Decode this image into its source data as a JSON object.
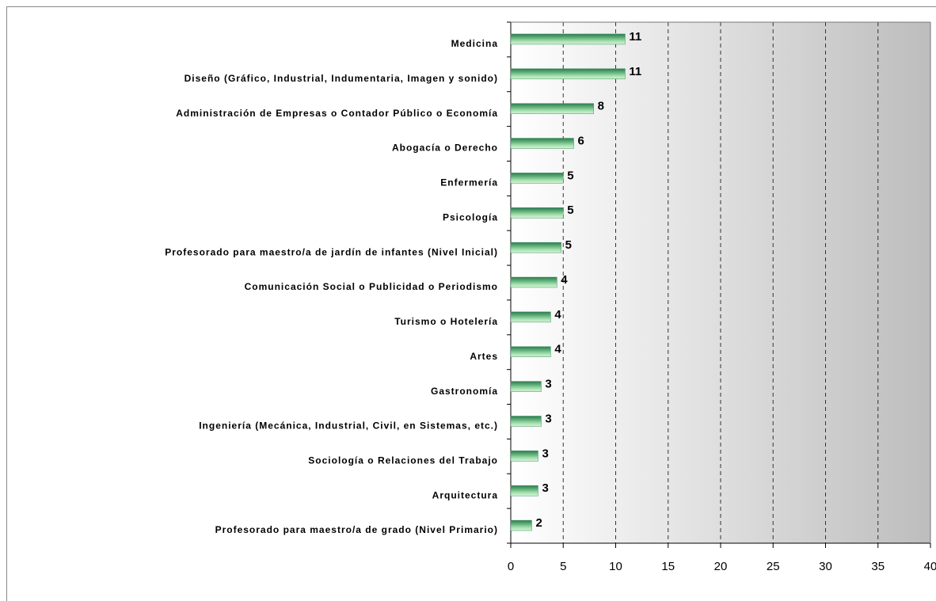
{
  "chart_data": {
    "type": "hbar",
    "categories": [
      "Medicina",
      "Diseño (Gráfico, Industrial, Indumentaria, Imagen y sonido)",
      "Administración de Empresas o Contador Público o Economía",
      "Abogacía o Derecho",
      "Enfermería",
      "Psicología",
      "Profesorado para maestro/a de jardín de infantes (Nivel Inicial)",
      "Comunicación Social o Publicidad o Periodismo",
      "Turismo o Hotelería",
      "Artes",
      "Gastronomía",
      "Ingeniería (Mecánica, Industrial, Civil, en Sistemas, etc.)",
      "Sociología o Relaciones del Trabajo",
      "Arquitectura",
      "Profesorado para maestro/a de grado (Nivel Primario)"
    ],
    "values": [
      10.9,
      10.9,
      7.9,
      6.0,
      5.0,
      5.0,
      4.8,
      4.4,
      3.8,
      3.8,
      2.9,
      2.9,
      2.6,
      2.6,
      2.0
    ],
    "value_labels": [
      "11",
      "11",
      "8",
      "6",
      "5",
      "5",
      "5",
      "4",
      "4",
      "4",
      "3",
      "3",
      "3",
      "3",
      "2"
    ],
    "color": "#3f8f5f",
    "xlim": [
      0,
      40
    ],
    "xticks": [
      0,
      5,
      10,
      15,
      20,
      25,
      30,
      35,
      40
    ],
    "grid": true
  }
}
